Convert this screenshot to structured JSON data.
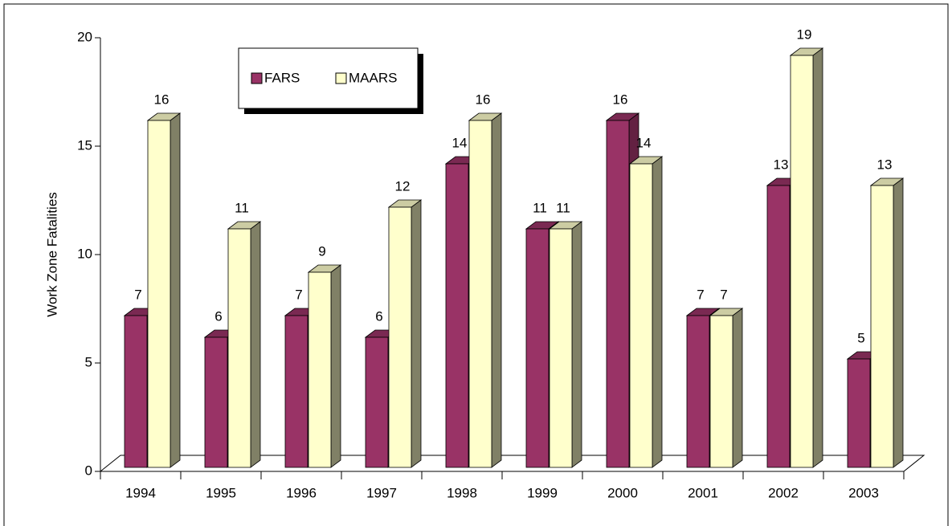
{
  "chart_data": {
    "type": "bar3d",
    "y_label": "Work Zone Fatalities",
    "categories": [
      "1994",
      "1995",
      "1996",
      "1997",
      "1998",
      "1999",
      "2000",
      "2001",
      "2002",
      "2003"
    ],
    "series": [
      {
        "name": "FARS",
        "color": "#993366",
        "values": [
          7,
          6,
          7,
          6,
          14,
          11,
          16,
          7,
          13,
          5
        ]
      },
      {
        "name": "MAARS",
        "color": "#ffffcc",
        "values": [
          16,
          11,
          9,
          12,
          16,
          11,
          14,
          7,
          19,
          13
        ]
      }
    ],
    "ylim": [
      0,
      20
    ],
    "yticks": [
      0,
      5,
      10,
      15,
      20
    ],
    "legend": "top-left"
  }
}
